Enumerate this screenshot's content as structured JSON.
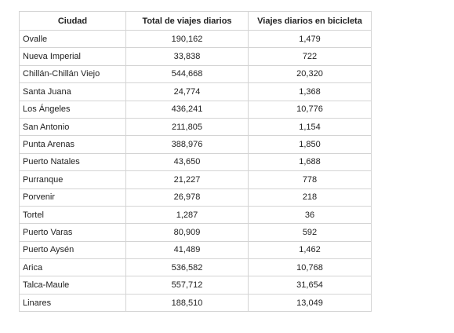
{
  "table": {
    "header": [
      "Ciudad",
      "Total de viajes diarios",
      "Viajes diarios en bicicleta"
    ],
    "rows": [
      [
        "Ovalle",
        "190,162",
        "1,479"
      ],
      [
        "Nueva Imperial",
        "33,838",
        "722"
      ],
      [
        "Chillán-Chillán Viejo",
        "544,668",
        "20,320"
      ],
      [
        "Santa Juana",
        "24,774",
        "1,368"
      ],
      [
        "Los Ángeles",
        "436,241",
        "10,776"
      ],
      [
        "San Antonio",
        "211,805",
        "1,154"
      ],
      [
        "Punta Arenas",
        "388,976",
        "1,850"
      ],
      [
        "Puerto Natales",
        "43,650",
        "1,688"
      ],
      [
        "Purranque",
        "21,227",
        "778"
      ],
      [
        "Porvenir",
        "26,978",
        "218"
      ],
      [
        "Tortel",
        "1,287",
        "36"
      ],
      [
        "Puerto Varas",
        "80,909",
        "592"
      ],
      [
        "Puerto Aysén",
        "41,489",
        "1,462"
      ],
      [
        "Arica",
        "536,582",
        "10,768"
      ],
      [
        "Talca-Maule",
        "557,712",
        "31,654"
      ],
      [
        "Linares",
        "188,510",
        "13,049"
      ]
    ]
  }
}
